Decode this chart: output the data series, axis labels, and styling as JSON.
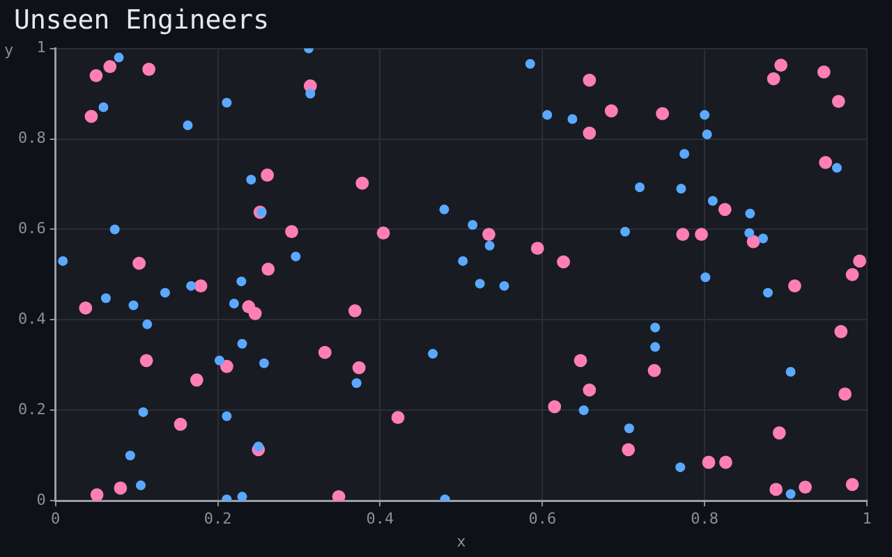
{
  "chart_data": {
    "type": "scatter",
    "title": "Unseen Engineers",
    "xlabel": "x",
    "ylabel": "y",
    "xlim": [
      0,
      1
    ],
    "ylim": [
      0,
      1
    ],
    "xticks": [
      0,
      0.2,
      0.4,
      0.6,
      0.8,
      1
    ],
    "yticks": [
      0,
      0.2,
      0.4,
      0.6,
      0.8,
      1
    ],
    "grid": true,
    "legend": false,
    "marker": "circle",
    "series": [
      {
        "color": "#5aa9ff",
        "x": [
          0.009,
          0.078,
          0.059,
          0.073,
          0.163,
          0.211,
          0.312,
          0.314,
          0.241,
          0.296,
          0.585,
          0.606,
          0.637,
          0.479,
          0.514,
          0.535,
          0.502,
          0.8,
          0.803,
          0.775,
          0.72,
          0.771,
          0.81,
          0.856,
          0.963,
          0.702,
          0.855,
          0.872,
          0.062,
          0.096,
          0.135,
          0.167,
          0.229,
          0.22,
          0.113,
          0.23,
          0.202,
          0.257,
          0.108,
          0.211,
          0.092,
          0.105,
          0.25,
          0.211,
          0.23,
          0.523,
          0.553,
          0.465,
          0.371,
          0.651,
          0.48,
          0.801,
          0.878,
          0.739,
          0.739,
          0.906,
          0.707,
          0.77,
          0.906,
          0.254
        ],
        "values": [
          0.53,
          0.98,
          0.87,
          0.6,
          0.83,
          0.88,
          1.0,
          0.9,
          0.71,
          0.54,
          0.966,
          0.853,
          0.844,
          0.644,
          0.61,
          0.564,
          0.53,
          0.853,
          0.81,
          0.767,
          0.693,
          0.69,
          0.663,
          0.635,
          0.736,
          0.595,
          0.592,
          0.58,
          0.448,
          0.432,
          0.46,
          0.475,
          0.485,
          0.436,
          0.39,
          0.347,
          0.31,
          0.304,
          0.196,
          0.187,
          0.1,
          0.034,
          0.12,
          0.003,
          0.009,
          0.48,
          0.475,
          0.325,
          0.26,
          0.2,
          0.003,
          0.494,
          0.46,
          0.383,
          0.34,
          0.285,
          0.16,
          0.074,
          0.015,
          0.638
        ]
      },
      {
        "color": "#ff7eb6",
        "x": [
          0.05,
          0.067,
          0.044,
          0.115,
          0.314,
          0.261,
          0.252,
          0.291,
          0.103,
          0.262,
          0.658,
          0.658,
          0.378,
          0.404,
          0.534,
          0.594,
          0.626,
          0.685,
          0.748,
          0.894,
          0.885,
          0.947,
          0.965,
          0.949,
          0.825,
          0.773,
          0.796,
          0.86,
          0.991,
          0.037,
          0.179,
          0.238,
          0.246,
          0.112,
          0.211,
          0.174,
          0.154,
          0.25,
          0.08,
          0.051,
          0.369,
          0.332,
          0.374,
          0.422,
          0.349,
          0.647,
          0.615,
          0.658,
          0.982,
          0.911,
          0.968,
          0.738,
          0.973,
          0.892,
          0.706,
          0.805,
          0.826,
          0.888,
          0.924,
          0.982
        ],
        "values": [
          0.94,
          0.96,
          0.85,
          0.954,
          0.917,
          0.72,
          0.638,
          0.595,
          0.525,
          0.512,
          0.93,
          0.813,
          0.702,
          0.592,
          0.589,
          0.558,
          0.528,
          0.862,
          0.856,
          0.963,
          0.933,
          0.948,
          0.883,
          0.748,
          0.644,
          0.589,
          0.589,
          0.573,
          0.53,
          0.426,
          0.475,
          0.429,
          0.414,
          0.31,
          0.297,
          0.267,
          0.169,
          0.113,
          0.028,
          0.013,
          0.42,
          0.328,
          0.294,
          0.184,
          0.009,
          0.31,
          0.208,
          0.245,
          0.5,
          0.475,
          0.374,
          0.288,
          0.236,
          0.15,
          0.113,
          0.085,
          0.085,
          0.025,
          0.03,
          0.036
        ]
      }
    ]
  }
}
